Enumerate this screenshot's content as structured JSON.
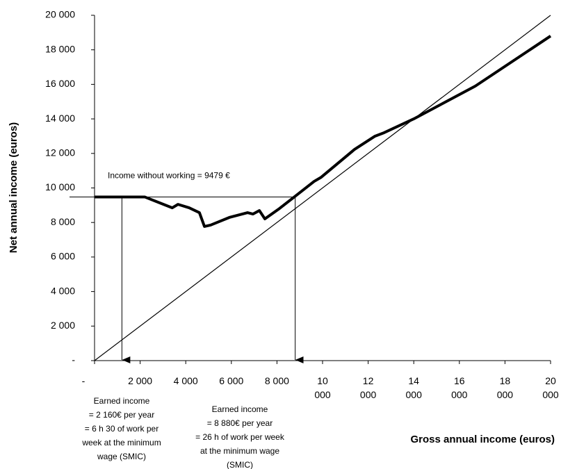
{
  "chart_data": {
    "type": "line",
    "y_label": "Net annual income (euros)",
    "x_label": "Gross annual income (euros)",
    "series": [
      {
        "color": "#000000",
        "x": [
          0,
          2200,
          2870,
          3410,
          3660,
          4150,
          4600,
          4820,
          5090,
          5910,
          6710,
          6950,
          7230,
          7470,
          8110,
          8780,
          9630,
          9940,
          11400,
          12300,
          12700,
          14000,
          16700,
          20000
        ],
        "values": [
          9479,
          9479,
          9130,
          8850,
          9050,
          8850,
          8570,
          7770,
          7850,
          8290,
          8570,
          8490,
          8690,
          8210,
          8810,
          9500,
          10380,
          10620,
          12230,
          13000,
          13200,
          14000,
          15900,
          18800
        ]
      },
      {
        "color": "#000000",
        "x": [
          0,
          20000
        ],
        "values": [
          0,
          20000
        ]
      }
    ],
    "level": {
      "value": 9479,
      "label": "Income without working = 9479  €"
    },
    "arrows": [
      {
        "x": 1200,
        "text": [
          "Earned income",
          "= 2 160€ per year",
          "= 6 h 30 of work per",
          "week at the minimum",
          "wage (SMIC)"
        ]
      },
      {
        "x": 8800,
        "text": [
          "Earned income",
          "= 8 880€ per year",
          "= 26 h of work per week",
          "at the minimum wage",
          "(SMIC)"
        ]
      }
    ],
    "xlim": [
      0,
      20000
    ],
    "ylim": [
      0,
      20000
    ],
    "xticks": [
      {
        "value": 0,
        "label": "-"
      },
      {
        "value": 2000,
        "label": "2 000"
      },
      {
        "value": 4000,
        "label": "4 000"
      },
      {
        "value": 6000,
        "label": "6 000"
      },
      {
        "value": 8000,
        "label": "8 000"
      },
      {
        "value": 10000,
        "label": "10 000"
      },
      {
        "value": 12000,
        "label": "12 000"
      },
      {
        "value": 14000,
        "label": "14 000"
      },
      {
        "value": 16000,
        "label": "16 000"
      },
      {
        "value": 18000,
        "label": "18 000"
      },
      {
        "value": 20000,
        "label": "20 000"
      }
    ],
    "yticks": [
      {
        "value": 0,
        "label": "-"
      },
      {
        "value": 2000,
        "label": "2 000"
      },
      {
        "value": 4000,
        "label": "4 000"
      },
      {
        "value": 6000,
        "label": "6 000"
      },
      {
        "value": 8000,
        "label": "8 000"
      },
      {
        "value": 10000,
        "label": "10 000"
      },
      {
        "value": 12000,
        "label": "12 000"
      },
      {
        "value": 14000,
        "label": "14 000"
      },
      {
        "value": 16000,
        "label": "16 000"
      },
      {
        "value": 18000,
        "label": "18 000"
      },
      {
        "value": 20000,
        "label": "20 000"
      }
    ]
  }
}
